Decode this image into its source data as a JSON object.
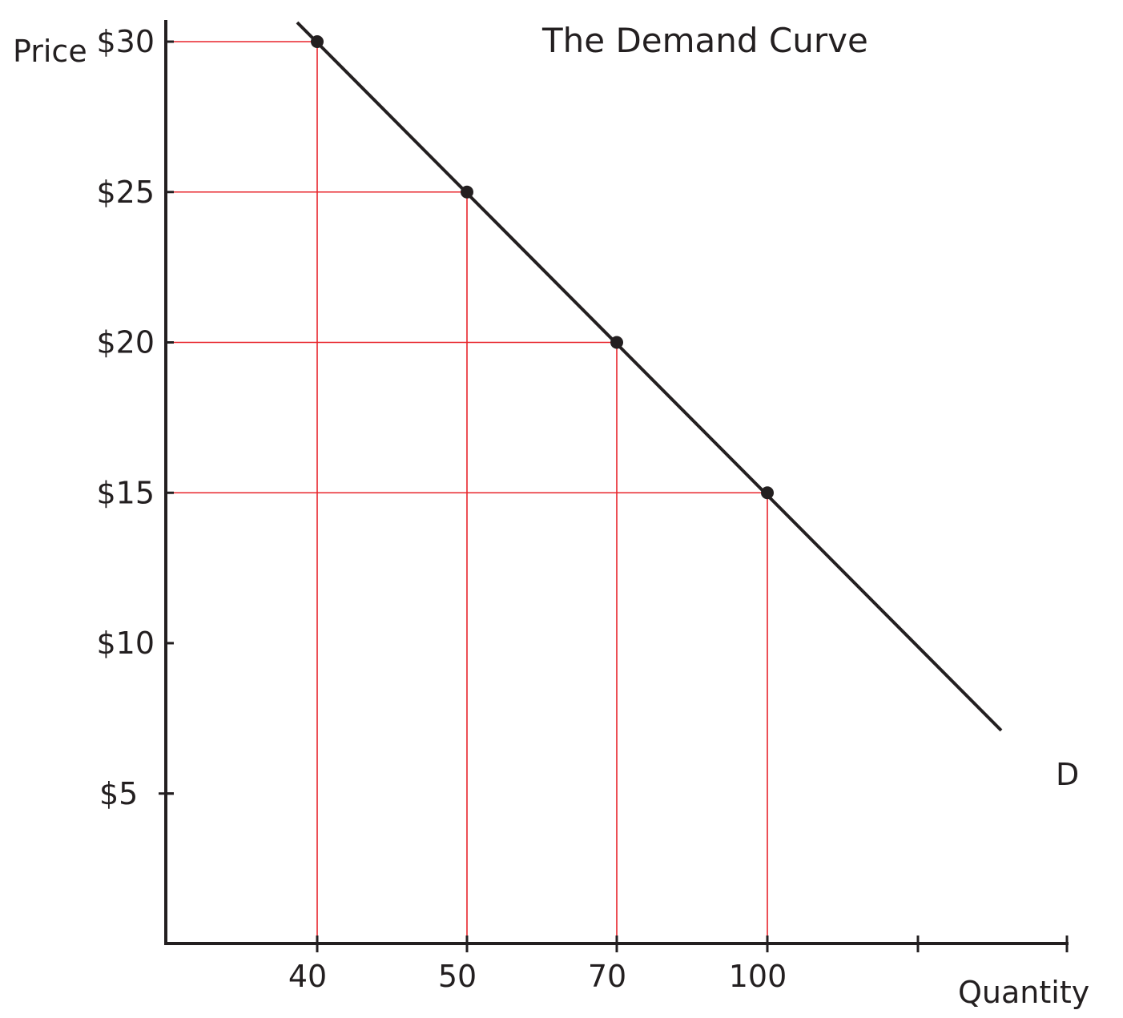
{
  "chart_data": {
    "type": "line",
    "title": "The Demand Curve",
    "ylabel": "Price",
    "xlabel": "Quantity",
    "series": [
      {
        "name": "D",
        "x": [
          40,
          50,
          70,
          100
        ],
        "y": [
          30,
          25,
          20,
          15
        ]
      }
    ],
    "y_ticks": [
      {
        "value": 30,
        "label": "$30"
      },
      {
        "value": 25,
        "label": "$25"
      },
      {
        "value": 20,
        "label": "$20"
      },
      {
        "value": 15,
        "label": "$15"
      },
      {
        "value": 10,
        "label": "$10"
      },
      {
        "value": 5,
        "label": "$5"
      }
    ],
    "x_ticks": [
      {
        "value": 40,
        "label": "40"
      },
      {
        "value": 50,
        "label": "50"
      },
      {
        "value": 70,
        "label": "70"
      },
      {
        "value": 100,
        "label": "100"
      },
      {
        "value": null,
        "label": ""
      },
      {
        "value": null,
        "label": ""
      }
    ],
    "guides": "red horizontal and vertical lines from each labelled point to the axes",
    "grid": false,
    "legend": "none",
    "colors": {
      "curve": "#231f20",
      "guides": "#e8242b",
      "axes": "#231f20"
    }
  }
}
